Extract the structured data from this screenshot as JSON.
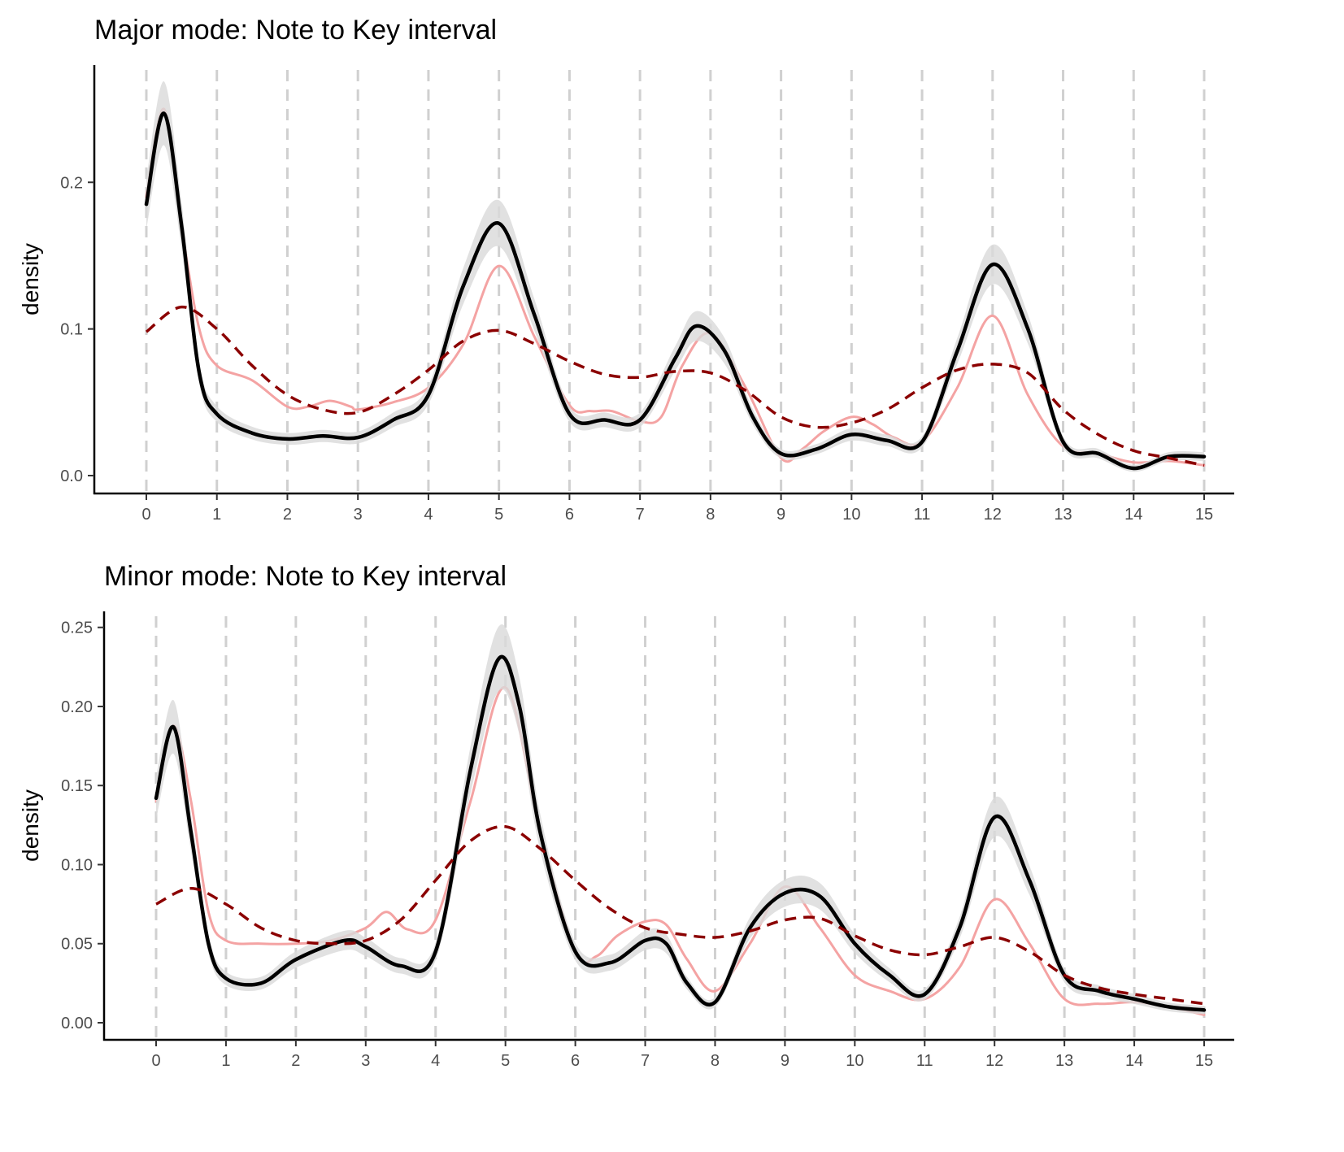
{
  "chart_data": [
    {
      "type": "line",
      "title": "Major mode: Note to Key interval",
      "xlabel": "",
      "ylabel": "density",
      "xlim": [
        0,
        15
      ],
      "ylim": [
        0,
        0.27
      ],
      "x_ticks": [
        "0",
        "1",
        "2",
        "3",
        "4",
        "5",
        "6",
        "7",
        "8",
        "9",
        "10",
        "11",
        "12",
        "13",
        "14",
        "15"
      ],
      "y_ticks": [
        "0.0",
        "0.1",
        "0.2"
      ],
      "y_tick_values": [
        0.0,
        0.1,
        0.2
      ],
      "grid": "dashed vertical lines at each integer x",
      "legend": "none",
      "series": [
        {
          "style": "pink thin solid",
          "color": "#f4a3a3",
          "x": [
            0.0,
            0.25,
            0.5,
            0.75,
            1.0,
            1.5,
            2.0,
            2.3,
            2.6,
            2.9,
            3.0,
            3.5,
            4.0,
            4.5,
            5.0,
            5.5,
            6.0,
            6.3,
            6.6,
            7.0,
            7.3,
            7.6,
            8.0,
            8.5,
            9.0,
            9.3,
            9.6,
            10.0,
            10.3,
            10.6,
            11.0,
            11.5,
            12.0,
            12.5,
            13.0,
            13.5,
            14.0,
            14.5,
            15.0
          ],
          "y": [
            0.19,
            0.25,
            0.17,
            0.1,
            0.075,
            0.065,
            0.047,
            0.047,
            0.051,
            0.047,
            0.045,
            0.05,
            0.06,
            0.09,
            0.143,
            0.095,
            0.048,
            0.044,
            0.044,
            0.037,
            0.04,
            0.075,
            0.097,
            0.06,
            0.012,
            0.018,
            0.03,
            0.04,
            0.035,
            0.026,
            0.023,
            0.06,
            0.109,
            0.055,
            0.02,
            0.015,
            0.009,
            0.01,
            0.007
          ]
        },
        {
          "style": "black thick solid with grey confidence band",
          "color": "#000000",
          "band_color": "#d9d9d9",
          "x": [
            0.0,
            0.25,
            0.5,
            0.75,
            1.0,
            1.5,
            2.0,
            2.5,
            3.0,
            3.5,
            4.0,
            4.5,
            5.0,
            5.5,
            6.0,
            6.5,
            7.0,
            7.5,
            7.8,
            8.2,
            8.6,
            9.0,
            9.5,
            10.0,
            10.5,
            11.0,
            11.5,
            12.0,
            12.5,
            13.0,
            13.5,
            14.0,
            14.5,
            15.0
          ],
          "y": [
            0.185,
            0.247,
            0.17,
            0.07,
            0.042,
            0.029,
            0.025,
            0.027,
            0.026,
            0.038,
            0.055,
            0.13,
            0.172,
            0.11,
            0.042,
            0.038,
            0.038,
            0.08,
            0.102,
            0.085,
            0.04,
            0.015,
            0.018,
            0.028,
            0.024,
            0.023,
            0.085,
            0.144,
            0.1,
            0.023,
            0.015,
            0.005,
            0.013,
            0.013
          ]
        },
        {
          "style": "dark red dashed",
          "color": "#8b0000",
          "x": [
            0.0,
            0.5,
            1.0,
            1.5,
            2.0,
            2.5,
            3.0,
            3.5,
            4.0,
            4.5,
            5.0,
            5.5,
            6.0,
            6.5,
            7.0,
            7.5,
            8.0,
            8.5,
            9.0,
            9.5,
            10.0,
            10.5,
            11.0,
            11.5,
            12.0,
            12.5,
            13.0,
            13.5,
            14.0,
            14.5,
            15.0
          ],
          "y": [
            0.098,
            0.115,
            0.1,
            0.075,
            0.055,
            0.045,
            0.043,
            0.055,
            0.072,
            0.092,
            0.099,
            0.09,
            0.078,
            0.069,
            0.067,
            0.071,
            0.07,
            0.058,
            0.04,
            0.033,
            0.036,
            0.045,
            0.06,
            0.072,
            0.076,
            0.07,
            0.045,
            0.028,
            0.017,
            0.012,
            0.007
          ]
        }
      ]
    },
    {
      "type": "line",
      "title": "Minor mode: Note to Key interval",
      "xlabel": "",
      "ylabel": "density",
      "xlim": [
        0,
        15
      ],
      "ylim": [
        0,
        0.255
      ],
      "x_ticks": [
        "0",
        "1",
        "2",
        "3",
        "4",
        "5",
        "6",
        "7",
        "8",
        "9",
        "10",
        "11",
        "12",
        "13",
        "14",
        "15"
      ],
      "y_ticks": [
        "0.00",
        "0.05",
        "0.10",
        "0.15",
        "0.20",
        "0.25"
      ],
      "y_tick_values": [
        0.0,
        0.05,
        0.1,
        0.15,
        0.2,
        0.25
      ],
      "grid": "dashed vertical lines at each integer x",
      "legend": "none",
      "series": [
        {
          "style": "pink thin solid",
          "color": "#f4a3a3",
          "x": [
            0.0,
            0.25,
            0.5,
            0.75,
            1.0,
            1.5,
            2.0,
            2.5,
            3.0,
            3.3,
            3.6,
            4.0,
            4.5,
            5.0,
            5.5,
            6.0,
            6.3,
            6.6,
            7.0,
            7.3,
            7.6,
            8.0,
            8.5,
            9.0,
            9.5,
            10.0,
            10.5,
            11.0,
            11.5,
            12.0,
            12.5,
            13.0,
            13.5,
            14.0,
            14.5,
            15.0
          ],
          "y": [
            0.14,
            0.188,
            0.14,
            0.07,
            0.052,
            0.05,
            0.05,
            0.052,
            0.06,
            0.07,
            0.059,
            0.065,
            0.14,
            0.212,
            0.12,
            0.045,
            0.042,
            0.055,
            0.064,
            0.062,
            0.04,
            0.02,
            0.05,
            0.086,
            0.06,
            0.03,
            0.02,
            0.015,
            0.035,
            0.078,
            0.05,
            0.015,
            0.012,
            0.013,
            0.01,
            0.005
          ]
        },
        {
          "style": "black thick solid with grey confidence band",
          "color": "#000000",
          "band_color": "#d9d9d9",
          "x": [
            0.0,
            0.25,
            0.5,
            0.75,
            1.0,
            1.5,
            2.0,
            2.7,
            3.0,
            3.5,
            4.0,
            4.5,
            4.9,
            5.2,
            5.5,
            6.0,
            6.5,
            7.0,
            7.3,
            7.6,
            8.0,
            8.5,
            9.0,
            9.5,
            10.0,
            10.5,
            11.0,
            11.5,
            12.0,
            12.5,
            13.0,
            13.5,
            14.0,
            14.5,
            15.0
          ],
          "y": [
            0.142,
            0.187,
            0.12,
            0.05,
            0.028,
            0.025,
            0.04,
            0.052,
            0.048,
            0.036,
            0.045,
            0.16,
            0.23,
            0.2,
            0.12,
            0.045,
            0.038,
            0.052,
            0.05,
            0.025,
            0.013,
            0.06,
            0.082,
            0.08,
            0.05,
            0.03,
            0.018,
            0.06,
            0.13,
            0.09,
            0.03,
            0.02,
            0.015,
            0.01,
            0.008
          ]
        },
        {
          "style": "dark red dashed",
          "color": "#8b0000",
          "x": [
            0.0,
            0.5,
            1.0,
            1.5,
            2.0,
            2.5,
            3.0,
            3.5,
            4.0,
            4.5,
            5.0,
            5.5,
            6.0,
            6.5,
            7.0,
            7.5,
            8.0,
            8.5,
            9.0,
            9.5,
            10.0,
            10.5,
            11.0,
            11.5,
            12.0,
            12.5,
            13.0,
            13.5,
            14.0,
            14.5,
            15.0
          ],
          "y": [
            0.075,
            0.085,
            0.075,
            0.06,
            0.052,
            0.05,
            0.052,
            0.065,
            0.09,
            0.115,
            0.124,
            0.11,
            0.09,
            0.072,
            0.06,
            0.056,
            0.054,
            0.058,
            0.065,
            0.066,
            0.055,
            0.046,
            0.043,
            0.048,
            0.054,
            0.045,
            0.03,
            0.022,
            0.018,
            0.015,
            0.012
          ]
        }
      ]
    }
  ]
}
